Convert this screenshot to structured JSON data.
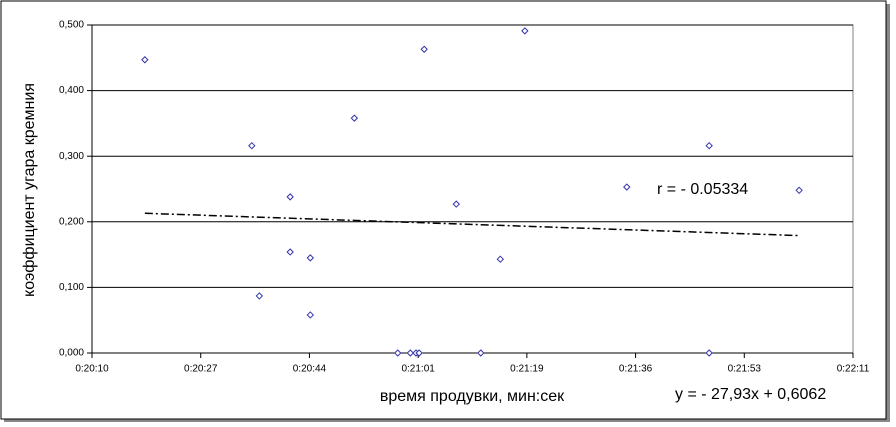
{
  "chart_data": {
    "type": "scatter",
    "x_label": "время продувки, мин:сек",
    "y_label": "коэффициент угара кремния",
    "annotations": [
      "r = - 0.05334",
      "y = - 27,93x + 0,6062"
    ],
    "series": [
      {
        "color": "#3333aa",
        "x": [
          1218.4,
          1235.4,
          1236.6,
          1241.5,
          1241.5,
          1244.7,
          1244.7,
          1251.7,
          1258.6,
          1260.6,
          1261.5,
          1262,
          1262.8,
          1267.9,
          1271.8,
          1274.9,
          1278.8,
          1295,
          1308.1,
          1308.1,
          1322.4
        ],
        "values": [
          0.447,
          0.316,
          0.087,
          0.238,
          0.154,
          0.145,
          0.058,
          0.358,
          0,
          0,
          0,
          0,
          0.463,
          0.227,
          0,
          0.143,
          0.491,
          0.253,
          0.316,
          0,
          0.248
        ]
      }
    ],
    "trend": {
      "x": [
        1218.4,
        1322.4
      ],
      "values": [
        0.213,
        0.179
      ]
    },
    "xlim": [
      1210,
      1330.96
    ],
    "xticks": [
      {
        "value": 1210,
        "label": "0:20:10"
      },
      {
        "value": 1227.28,
        "label": "0:20:27"
      },
      {
        "value": 1244.56,
        "label": "0:20:44"
      },
      {
        "value": 1261.84,
        "label": "0:21:01"
      },
      {
        "value": 1279.12,
        "label": "0:21:19"
      },
      {
        "value": 1296.4,
        "label": "0:21:36"
      },
      {
        "value": 1313.68,
        "label": "0:21:53"
      },
      {
        "value": 1330.96,
        "label": "0:22:11"
      }
    ],
    "ylim": [
      0,
      0.5
    ],
    "yticks": [
      {
        "value": 0,
        "label": "0,000"
      },
      {
        "value": 0.1,
        "label": "0,100"
      },
      {
        "value": 0.2,
        "label": "0,200"
      },
      {
        "value": 0.3,
        "label": "0,300"
      },
      {
        "value": 0.4,
        "label": "0,400"
      },
      {
        "value": 0.5,
        "label": "0,500"
      }
    ],
    "grid": true
  }
}
